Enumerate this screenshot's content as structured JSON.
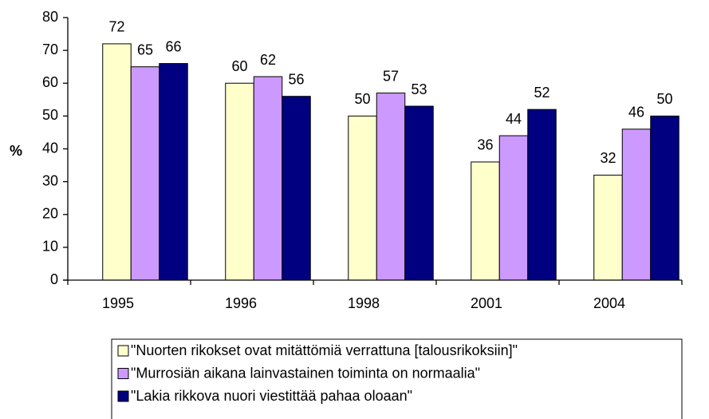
{
  "chart_data": {
    "type": "bar",
    "ylabel": "%",
    "categories": [
      "1995",
      "1996",
      "1998",
      "2001",
      "2004"
    ],
    "series": [
      {
        "name": "\"Nuorten rikokset ovat mitättömiä verrattuna [talousrikoksiin]\"",
        "color": "#ffffcc",
        "values": [
          72,
          60,
          50,
          36,
          32
        ]
      },
      {
        "name": "\"Murrosiän aikana lainvastainen toiminta on normaalia\"",
        "color": "#cc99ff",
        "values": [
          65,
          62,
          57,
          44,
          46
        ]
      },
      {
        "name": "\"Lakia rikkova nuori viestittää pahaa oloaan\"",
        "color": "#000080",
        "values": [
          66,
          56,
          53,
          52,
          50
        ]
      }
    ],
    "ylim": [
      0,
      80
    ],
    "yticks": [
      0,
      10,
      20,
      30,
      40,
      50,
      60,
      70,
      80
    ],
    "legend": "bottom"
  }
}
